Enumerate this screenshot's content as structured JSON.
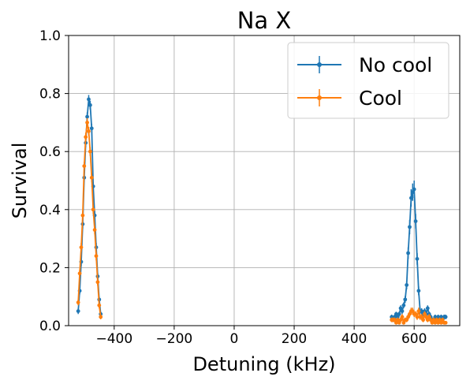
{
  "chart_data": {
    "type": "line",
    "title": "Na X",
    "xlabel": "Detuning (kHz)",
    "ylabel": "Survival",
    "xlim": [
      -552,
      752
    ],
    "ylim": [
      0,
      1.0
    ],
    "xticks": [
      -400,
      -200,
      0,
      200,
      400,
      600
    ],
    "xtick_labels": [
      "−400",
      "−200",
      "0",
      "200",
      "400",
      "600"
    ],
    "yticks": [
      0.0,
      0.2,
      0.4,
      0.6,
      0.8,
      1.0
    ],
    "ytick_labels": [
      "0.0",
      "0.2",
      "0.4",
      "0.6",
      "0.8",
      "1.0"
    ],
    "grid": true,
    "legend_position": "upper-right",
    "series": [
      {
        "name": "No cool",
        "color": "#1f77b4",
        "segments": [
          {
            "x": [
              -520,
              -515,
              -510,
              -505,
              -500,
              -495,
              -490,
              -485,
              -480,
              -475,
              -470,
              -465,
              -460,
              -455,
              -450,
              -445
            ],
            "y": [
              0.05,
              0.12,
              0.22,
              0.35,
              0.51,
              0.63,
              0.72,
              0.78,
              0.76,
              0.68,
              0.48,
              0.38,
              0.27,
              0.17,
              0.09,
              0.04
            ],
            "yerr": [
              0.01,
              0.012,
              0.015,
              0.015,
              0.015,
              0.015,
              0.015,
              0.015,
              0.015,
              0.015,
              0.015,
              0.015,
              0.015,
              0.012,
              0.01,
              0.008
            ]
          },
          {
            "x": [
              525,
              530,
              535,
              540,
              545,
              550,
              555,
              560,
              565,
              570,
              575,
              580,
              585,
              590,
              595,
              600,
              605,
              610,
              615,
              620,
              625,
              630,
              635,
              640,
              645,
              650,
              655,
              660,
              665,
              670,
              675,
              680,
              685,
              690,
              695,
              700,
              705
            ],
            "y": [
              0.03,
              0.02,
              0.03,
              0.04,
              0.03,
              0.04,
              0.06,
              0.05,
              0.07,
              0.09,
              0.14,
              0.25,
              0.34,
              0.44,
              0.46,
              0.47,
              0.36,
              0.23,
              0.12,
              0.05,
              0.05,
              0.04,
              0.05,
              0.04,
              0.06,
              0.04,
              0.03,
              0.02,
              0.02,
              0.03,
              0.02,
              0.03,
              0.02,
              0.03,
              0.02,
              0.03,
              0.03
            ],
            "yerr": [
              0.008,
              0.008,
              0.008,
              0.008,
              0.008,
              0.008,
              0.01,
              0.01,
              0.01,
              0.012,
              0.015,
              0.02,
              0.025,
              0.03,
              0.03,
              0.03,
              0.025,
              0.02,
              0.015,
              0.01,
              0.01,
              0.008,
              0.01,
              0.008,
              0.01,
              0.008,
              0.008,
              0.008,
              0.008,
              0.008,
              0.008,
              0.008,
              0.008,
              0.008,
              0.008,
              0.008,
              0.008
            ]
          }
        ]
      },
      {
        "name": "Cool",
        "color": "#ff7f0e",
        "segments": [
          {
            "x": [
              -520,
              -515,
              -510,
              -505,
              -500,
              -495,
              -490,
              -485,
              -480,
              -475,
              -470,
              -465,
              -460,
              -455,
              -450,
              -445
            ],
            "y": [
              0.08,
              0.18,
              0.27,
              0.38,
              0.55,
              0.65,
              0.7,
              0.67,
              0.6,
              0.51,
              0.4,
              0.33,
              0.24,
              0.15,
              0.07,
              0.03
            ],
            "yerr": [
              0.01,
              0.012,
              0.015,
              0.015,
              0.015,
              0.015,
              0.015,
              0.015,
              0.015,
              0.015,
              0.015,
              0.015,
              0.015,
              0.012,
              0.01,
              0.008
            ]
          },
          {
            "x": [
              525,
              530,
              535,
              540,
              545,
              550,
              555,
              560,
              565,
              570,
              575,
              580,
              585,
              590,
              595,
              600,
              605,
              610,
              615,
              620,
              625,
              630,
              635,
              640,
              645,
              650,
              655,
              660,
              665,
              670,
              675,
              680,
              685,
              690,
              695,
              700,
              705
            ],
            "y": [
              0.02,
              0.02,
              0.02,
              0.01,
              0.02,
              0.01,
              0.02,
              0.03,
              0.01,
              0.02,
              0.02,
              0.03,
              0.04,
              0.05,
              0.05,
              0.04,
              0.04,
              0.03,
              0.05,
              0.03,
              0.03,
              0.02,
              0.04,
              0.03,
              0.02,
              0.03,
              0.02,
              0.01,
              0.02,
              0.01,
              0.02,
              0.01,
              0.02,
              0.01,
              0.02,
              0.01,
              0.01
            ],
            "yerr": [
              0.008,
              0.008,
              0.008,
              0.006,
              0.008,
              0.006,
              0.008,
              0.01,
              0.006,
              0.008,
              0.008,
              0.01,
              0.01,
              0.012,
              0.012,
              0.01,
              0.01,
              0.01,
              0.012,
              0.01,
              0.01,
              0.008,
              0.01,
              0.01,
              0.008,
              0.01,
              0.008,
              0.006,
              0.008,
              0.006,
              0.008,
              0.006,
              0.008,
              0.006,
              0.008,
              0.006,
              0.006
            ]
          }
        ]
      }
    ]
  }
}
